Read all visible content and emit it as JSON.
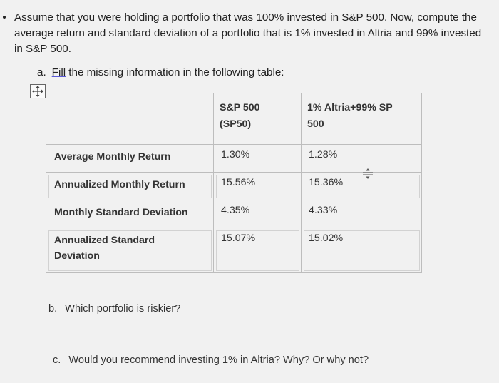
{
  "intro": "Assume that you were holding a portfolio that was 100% invested in S&P 500. Now, compute the average return and standard deviation of a portfolio that is 1% invested in Altria and 99% invested in S&P 500.",
  "item_a": {
    "letter": "a.",
    "underlined": "Fill",
    "rest": " the missing information in the following table:"
  },
  "table": {
    "headers": [
      "",
      "S&P 500 (SP50)",
      "1% Altria+99% SP 500"
    ],
    "header_lines": [
      [],
      [
        "S&P 500",
        "(SP50)"
      ],
      [
        "1% Altria+99% SP",
        "500"
      ]
    ],
    "rows": [
      {
        "label": "Average Monthly Return",
        "sp500": "1.30%",
        "altria_mix": "1.28%"
      },
      {
        "label": "Annualized Monthly Return",
        "sp500": "15.56%",
        "altria_mix": "15.36%"
      },
      {
        "label": "Monthly Standard Deviation",
        "sp500": "4.35%",
        "altria_mix": "4.33%"
      },
      {
        "label": "Annualized Standard Deviation",
        "sp500": "15.07%",
        "altria_mix": "15.02%"
      }
    ],
    "label_lines_row4": [
      "Annualized Standard",
      "Deviation"
    ]
  },
  "item_b": {
    "letter": "b.",
    "text": "Which portfolio is riskier?"
  },
  "item_c": {
    "letter": "c.",
    "text": "Would you recommend investing 1% in Altria? Why? Or why not?"
  },
  "icons": {
    "table_handle": "move-arrows-icon",
    "cursor": "resize-cursor-icon"
  }
}
